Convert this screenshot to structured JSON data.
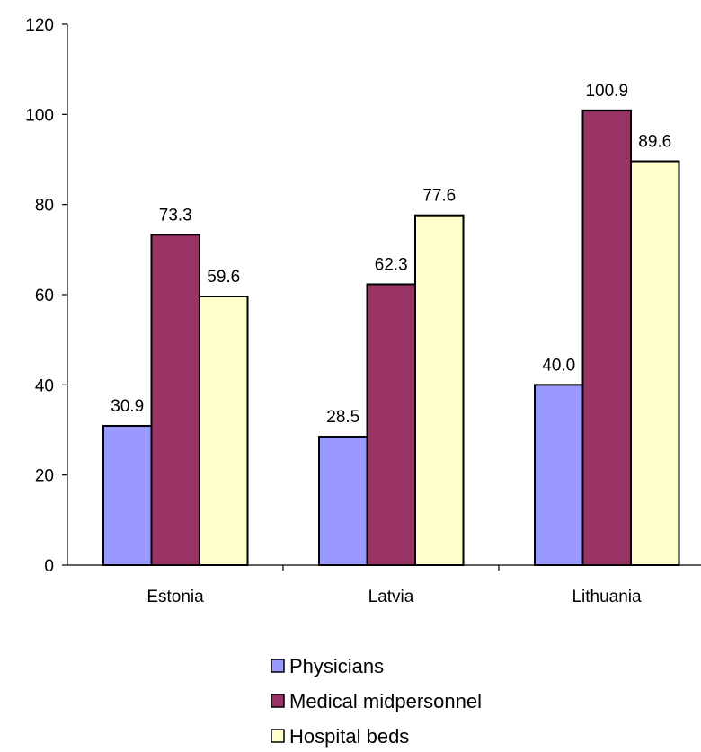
{
  "chart_data": {
    "type": "bar",
    "title": "",
    "xlabel": "",
    "ylabel": "",
    "categories": [
      "Estonia",
      "Latvia",
      "Lithuania"
    ],
    "ylim": [
      0,
      120
    ],
    "yticks": [
      0,
      20,
      40,
      60,
      80,
      100,
      120
    ],
    "grid": false,
    "legend_position": "bottom",
    "series": [
      {
        "name": "Physicians",
        "values": [
          30.9,
          28.5,
          40.0
        ],
        "labels": [
          "30.9",
          "28.5",
          "40.0"
        ],
        "color": "#9999ff"
      },
      {
        "name": "Medical midpersonnel",
        "values": [
          73.3,
          62.3,
          100.9
        ],
        "labels": [
          "73.3",
          "62.3",
          "100.9"
        ],
        "color": "#993366"
      },
      {
        "name": "Hospital beds",
        "values": [
          59.6,
          77.6,
          89.6
        ],
        "labels": [
          "59.6",
          "77.6",
          "89.6"
        ],
        "color": "#ffffcc"
      }
    ]
  }
}
